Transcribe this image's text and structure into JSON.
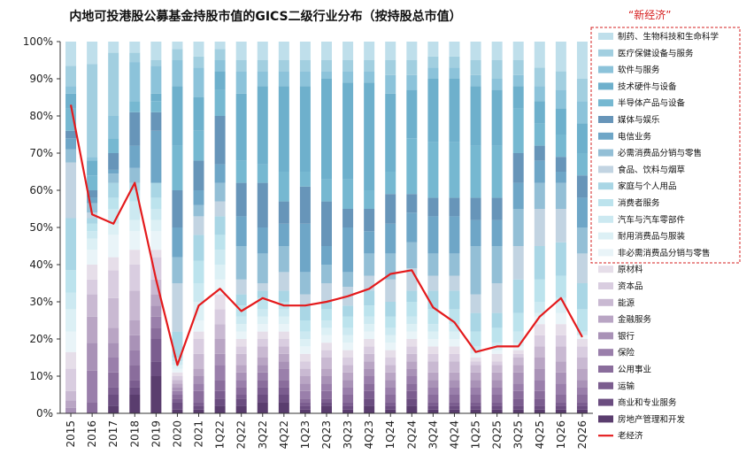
{
  "chart_data": {
    "type": "bar",
    "stacked": true,
    "title": "内地可投港股公募基金持股市值的GICS二级行业分布（按持股总市值）",
    "annotation": "“新经济”",
    "categories": [
      "2015",
      "2016",
      "2017",
      "2018",
      "2019",
      "2020",
      "2021",
      "1Q22",
      "2Q22",
      "3Q22",
      "4Q22",
      "1Q23",
      "2Q23",
      "3Q23",
      "4Q23",
      "1Q24",
      "2Q24",
      "3Q24",
      "4Q24",
      "1Q25",
      "2Q25",
      "3Q25",
      "4Q25",
      "1Q26",
      "2Q26"
    ],
    "y_tick_labels": [
      "0%",
      "10%",
      "20%",
      "30%",
      "40%",
      "50%",
      "60%",
      "70%",
      "80%",
      "90%",
      "100%"
    ],
    "ylim": [
      0,
      100
    ],
    "grid": false,
    "legend_position": "right",
    "colors": {
      "line": "#e41a1c",
      "new_economy_box": "#d62020",
      "series": [
        "#5a3d6e",
        "#6b4d80",
        "#7b5d8f",
        "#8a6d9c",
        "#9a7fab",
        "#a992b7",
        "#b9a5c4",
        "#c9b9d2",
        "#d9cde0",
        "#e6dee9",
        "#e9f4f8",
        "#dcf0f5",
        "#cce9f1",
        "#bce3ed",
        "#a9d6e5",
        "#c2d4e2",
        "#93bfd6",
        "#6ea6c7",
        "#6795b9",
        "#76b8d1",
        "#6eb0cc",
        "#8cc3da",
        "#a2cfe0",
        "#bfdfeb"
      ]
    },
    "series_order_bottom_to_top": [
      "房地产管理和开发",
      "商业和专业服务",
      "运输",
      "公用事业",
      "保险",
      "银行",
      "金融服务",
      "能源",
      "资本品",
      "原材料",
      "非必需消费品分销与零售",
      "耐用消费品与服装",
      "汽车与汽车零部件",
      "消费者服务",
      "家庭与个人用品",
      "食品、饮料与烟草",
      "必需消费品分销与零售",
      "电信业务",
      "媒体与娱乐",
      "半导体产品与设备",
      "技术硬件与设备",
      "软件与服务",
      "医疗保健设备与服务",
      "制药、生物科技和生命科学"
    ],
    "legend_new_economy": [
      "制药、生物科技和生命科学",
      "医疗保健设备与服务",
      "软件与服务",
      "技术硬件与设备",
      "半导体产品与设备",
      "媒体与娱乐",
      "电信业务",
      "必需消费品分销与零售",
      "食品、饮料与烟草",
      "家庭与个人用品",
      "消费者服务",
      "汽车与汽车零部件",
      "耐用消费品与服装",
      "非必需消费品分销与零售"
    ],
    "legend_old_economy": [
      "原材料",
      "资本品",
      "能源",
      "金融服务",
      "银行",
      "保险",
      "公用事业",
      "运输",
      "商业和专业服务",
      "房地产管理和开发"
    ],
    "line_series": {
      "name": "老经济",
      "values": [
        83,
        53.5,
        51,
        62,
        36,
        13,
        29,
        33.5,
        27.5,
        31,
        29,
        29,
        30,
        31.5,
        33.5,
        37.5,
        38.5,
        28.5,
        24.5,
        16.5,
        18,
        18,
        26,
        31,
        20.5
      ]
    },
    "boundaries": [
      [
        0,
        0,
        0,
        0,
        0,
        0,
        1.5,
        3.5,
        6,
        12,
        16.5,
        22,
        28,
        32.5,
        38.5,
        52.5,
        67.5,
        71,
        74,
        76,
        82,
        86,
        88,
        93.5,
        100
      ],
      [
        0,
        0,
        0,
        0,
        3,
        11.5,
        19,
        26,
        32,
        36,
        40,
        44,
        47,
        49,
        51,
        52.5,
        54,
        56.5,
        58,
        60,
        64,
        68,
        69,
        94,
        100
      ],
      [
        0,
        2,
        5,
        7,
        11,
        15,
        19,
        23,
        31,
        38.5,
        42,
        48,
        51,
        55,
        58,
        62,
        62,
        64.5,
        65.5,
        70,
        74,
        74,
        80,
        97,
        100
      ],
      [
        0,
        5,
        7,
        9,
        13,
        17,
        21,
        25,
        33,
        40,
        44,
        49,
        52,
        57,
        60,
        62,
        62,
        66,
        72,
        81,
        84,
        84,
        94.5,
        97,
        100
      ],
      [
        0,
        10,
        14,
        20,
        23,
        26,
        29,
        32,
        36,
        42,
        44,
        49,
        52,
        55,
        58,
        62,
        62,
        62,
        76,
        81,
        84,
        86,
        93.5,
        95,
        100
      ],
      [
        0,
        1,
        3,
        4,
        5,
        6,
        7,
        8,
        9,
        10,
        11,
        12,
        13,
        14,
        15,
        22,
        35,
        42,
        50,
        60,
        72,
        88,
        95,
        98,
        100
      ],
      [
        0,
        1,
        2,
        3,
        6,
        8,
        10,
        12,
        16,
        20,
        22,
        25,
        30,
        35,
        41,
        48,
        53,
        56,
        60,
        68,
        76,
        85,
        93,
        96,
        100
      ],
      [
        0,
        2,
        4,
        6,
        9,
        13,
        16,
        20,
        24,
        28,
        32,
        36,
        40,
        44,
        48,
        53,
        57,
        62,
        67,
        80,
        87,
        92,
        95,
        98,
        100
      ],
      [
        0,
        2,
        4,
        5,
        7,
        9,
        11,
        13,
        16,
        18,
        20,
        22,
        24,
        26,
        29,
        32,
        36,
        45,
        53,
        62,
        68,
        86,
        92,
        95,
        100
      ],
      [
        0,
        3,
        5,
        7,
        9,
        11,
        13,
        15,
        18,
        20,
        22,
        24,
        26,
        28,
        31,
        33,
        35,
        43,
        50,
        62,
        67,
        88,
        92,
        95,
        100
      ],
      [
        0,
        3,
        5,
        7,
        9,
        12,
        14,
        16,
        18,
        20,
        22,
        24,
        26,
        28,
        30,
        33,
        38,
        45,
        51,
        57,
        65,
        88,
        92,
        95,
        100
      ],
      [
        0,
        1,
        2,
        3,
        4,
        6,
        8,
        10,
        12,
        14,
        16,
        18,
        20,
        22,
        25,
        29,
        32,
        38,
        51,
        61,
        65,
        88,
        92,
        95,
        100
      ],
      [
        0,
        2,
        3,
        4,
        6,
        8,
        10,
        12,
        15,
        17,
        19,
        21,
        23,
        25,
        28,
        30,
        35,
        40,
        45,
        57,
        63,
        90,
        92,
        95,
        100
      ],
      [
        0,
        1,
        2,
        3,
        5,
        7,
        9,
        11,
        13,
        15,
        17,
        19,
        21,
        23,
        26,
        29,
        34,
        38,
        50,
        55,
        63,
        89,
        92,
        95,
        100
      ],
      [
        0,
        2,
        4,
        6,
        8,
        10,
        12,
        14,
        16,
        18,
        20,
        22,
        24,
        26,
        29,
        33,
        37,
        43,
        49,
        55,
        60,
        89,
        92,
        95,
        100
      ],
      [
        0,
        1,
        2,
        3,
        5,
        7,
        9,
        11,
        13,
        15,
        17,
        19,
        21,
        23,
        26,
        30,
        36,
        43,
        51,
        59,
        65,
        86,
        91,
        95,
        100
      ],
      [
        0,
        2,
        4,
        6,
        8,
        10,
        12,
        14,
        16,
        18,
        20,
        22,
        24,
        26,
        30,
        33,
        39,
        46,
        54,
        59,
        74,
        87,
        91,
        95,
        100
      ],
      [
        0,
        1,
        2,
        3,
        5,
        7,
        9,
        11,
        14,
        16,
        18,
        20,
        22,
        24,
        28,
        33,
        37,
        43,
        53,
        58,
        73,
        90,
        93,
        96,
        100
      ],
      [
        0,
        1,
        2,
        3,
        5,
        7,
        9,
        11,
        14,
        16,
        18,
        20,
        22,
        24,
        28,
        33,
        37,
        43,
        53,
        58,
        73,
        90,
        93,
        96,
        100
      ],
      [
        0,
        1,
        2,
        3,
        5,
        7,
        9,
        11,
        13,
        14,
        15,
        16,
        17,
        18,
        22,
        27,
        32,
        45,
        52,
        58,
        72,
        88,
        91,
        95,
        100
      ],
      [
        0,
        1,
        2,
        3,
        5,
        7,
        9,
        11,
        13,
        14,
        16,
        17,
        18,
        19,
        23,
        27,
        35,
        45,
        52,
        58,
        72,
        87,
        90,
        95,
        100
      ],
      [
        0,
        1,
        2,
        4,
        6,
        8,
        11,
        13,
        15,
        16,
        17,
        18,
        19,
        22,
        27,
        36,
        45,
        55,
        62,
        70,
        82,
        88,
        91,
        95,
        100
      ],
      [
        0,
        1,
        2,
        4,
        6,
        9,
        12,
        15,
        18,
        21,
        24,
        26,
        27,
        30,
        36,
        45,
        55,
        62,
        68,
        72,
        78,
        84,
        88,
        93,
        100
      ],
      [
        0,
        1,
        2,
        3,
        5,
        8,
        11,
        14,
        18,
        21,
        24,
        27,
        30,
        31,
        37,
        46,
        55,
        62,
        65,
        69,
        75,
        82,
        87,
        92,
        100
      ],
      [
        0,
        1,
        2,
        3,
        5,
        7,
        9,
        12,
        15,
        18,
        20,
        21,
        21,
        22,
        28,
        35,
        43,
        50,
        58,
        64,
        70,
        78,
        84,
        90,
        100
      ]
    ]
  }
}
